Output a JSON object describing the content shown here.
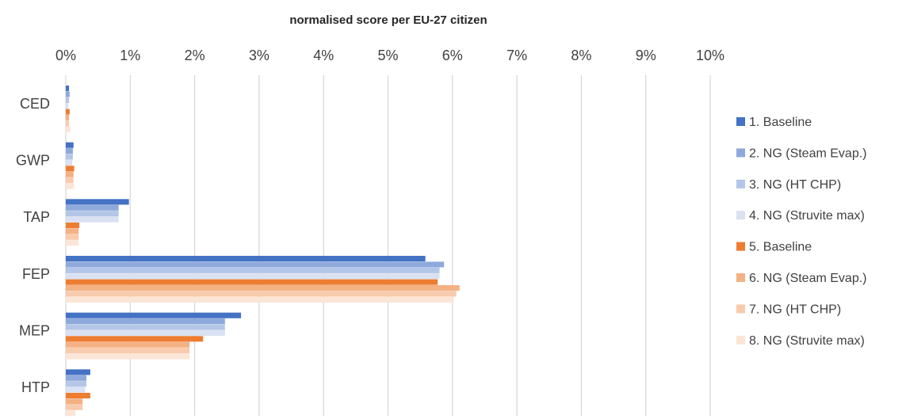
{
  "chart_data": {
    "type": "bar",
    "orientation": "horizontal",
    "title": "normalised score per EU-27 citizen",
    "x_axis_position": "top",
    "xlim": [
      0,
      10
    ],
    "x_ticks": [
      "0%",
      "1%",
      "2%",
      "3%",
      "4%",
      "5%",
      "6%",
      "7%",
      "8%",
      "9%",
      "10%"
    ],
    "grid": "vertical",
    "legend_position": "right",
    "categories": [
      "CED",
      "GWP",
      "TAP",
      "FEP",
      "MEP",
      "HTP"
    ],
    "series": [
      {
        "name": "1. Baseline",
        "color": "#4472C4",
        "values": [
          0.05,
          0.12,
          0.98,
          5.58,
          2.72,
          0.38
        ]
      },
      {
        "name": "2. NG (Steam Evap.)",
        "color": "#8EA9DB",
        "values": [
          0.06,
          0.11,
          0.82,
          5.87,
          2.47,
          0.32
        ]
      },
      {
        "name": "3. NG (HT CHP)",
        "color": "#B4C6E7",
        "values": [
          0.05,
          0.11,
          0.82,
          5.8,
          2.47,
          0.32
        ]
      },
      {
        "name": "4. NG (Struvite max)",
        "color": "#D9E1F2",
        "values": [
          0.04,
          0.1,
          0.82,
          5.8,
          2.47,
          0.3
        ]
      },
      {
        "name": "5. Baseline",
        "color": "#ED7D31",
        "values": [
          0.06,
          0.13,
          0.21,
          5.77,
          2.13,
          0.38
        ]
      },
      {
        "name": "6. NG (Steam Evap.)",
        "color": "#F4B183",
        "values": [
          0.05,
          0.12,
          0.2,
          6.11,
          1.92,
          0.26
        ]
      },
      {
        "name": "7. NG (HT CHP)",
        "color": "#F8CBAD",
        "values": [
          0.05,
          0.12,
          0.2,
          6.06,
          1.92,
          0.26
        ]
      },
      {
        "name": "8. NG (Struvite max)",
        "color": "#FBE5D6",
        "values": [
          0.07,
          0.13,
          0.2,
          6.02,
          1.92,
          0.15
        ]
      }
    ]
  }
}
